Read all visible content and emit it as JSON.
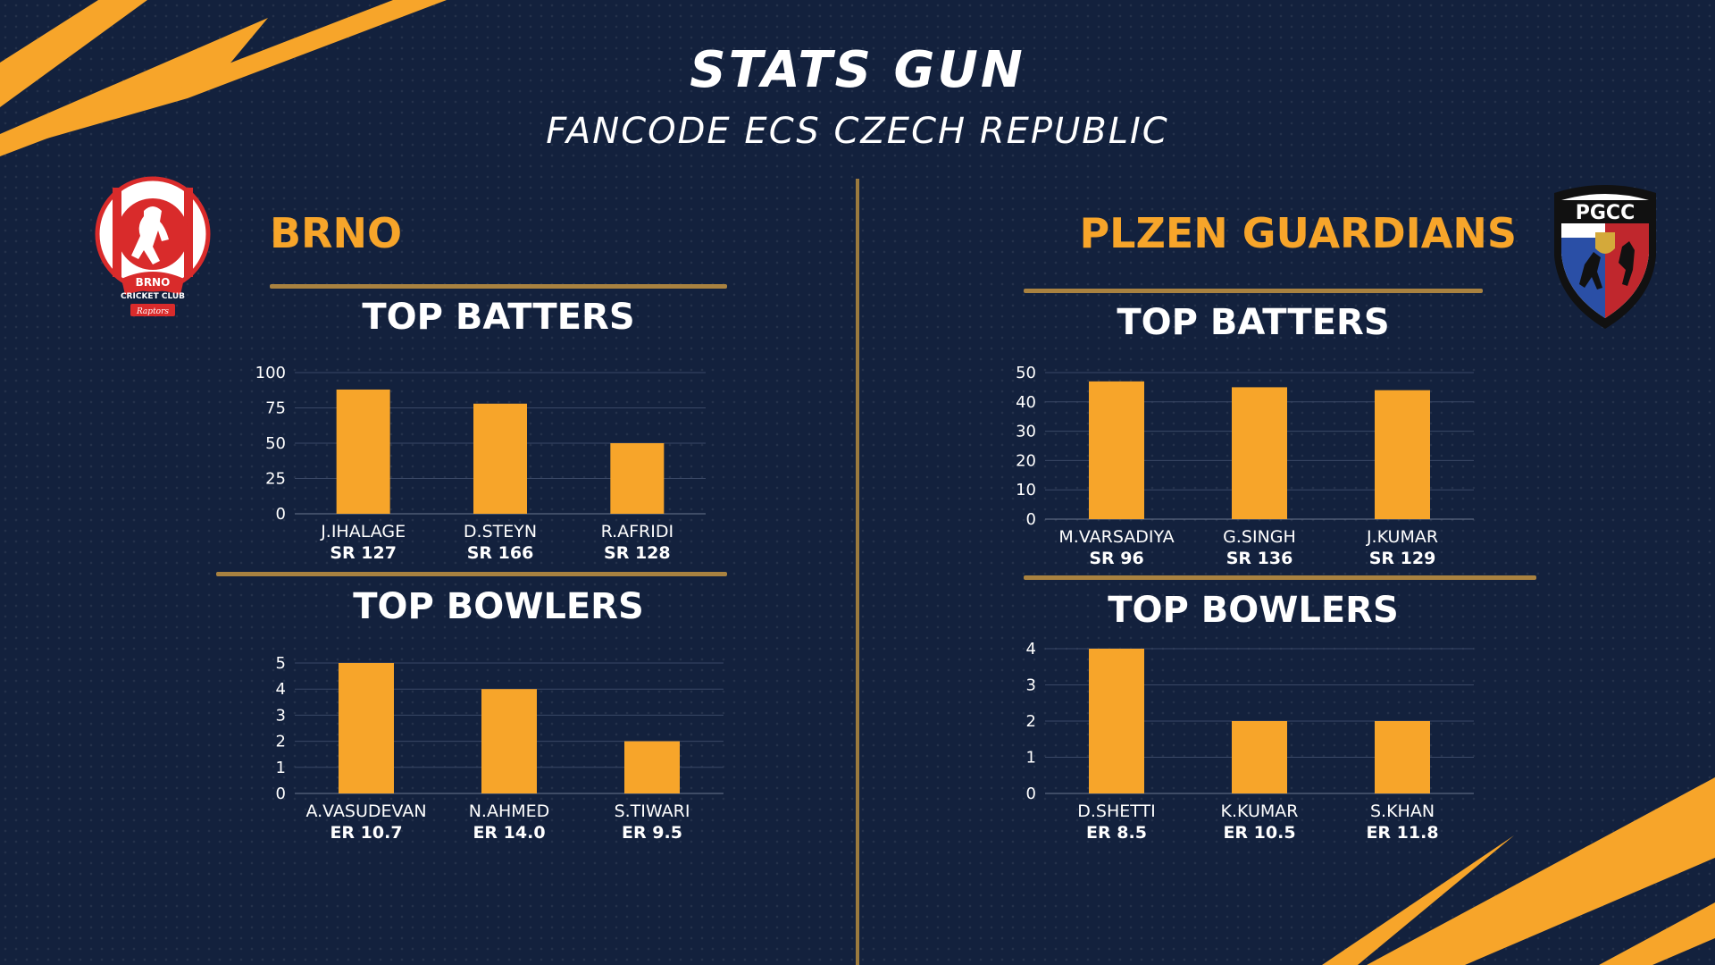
{
  "header": {
    "title": "STATS GUN",
    "subtitle": "FANCODE ECS CZECH REPUBLIC"
  },
  "colors": {
    "background": "#13213d",
    "accent": "#f7a52a",
    "rule": "#a98240",
    "text": "#ffffff"
  },
  "teams": {
    "left": {
      "name": "BRNO",
      "logo": {
        "icon": "brno-cricket-club-logo",
        "line1": "BRNO",
        "line2": "CRICKET CLUB",
        "line3": "Raptors"
      }
    },
    "right": {
      "name": "PLZEN GUARDIANS",
      "logo": {
        "icon": "pgcc-shield-logo",
        "line1": "PGCC"
      }
    }
  },
  "sections": {
    "batters_title": "TOP BATTERS",
    "bowlers_title": "TOP BOWLERS"
  },
  "chart_data": [
    {
      "type": "bar",
      "team": "BRNO",
      "title": "TOP BATTERS",
      "categories": [
        "J.IHALAGE",
        "D.STEYN",
        "R.AFRIDI"
      ],
      "sublabels": [
        "SR 127",
        "SR 166",
        "SR 128"
      ],
      "values": [
        88,
        78,
        50
      ],
      "yticks": [
        0,
        25,
        50,
        75,
        100
      ],
      "ylim": [
        0,
        100
      ],
      "grid": true,
      "color": "#f7a52a"
    },
    {
      "type": "bar",
      "team": "BRNO",
      "title": "TOP BOWLERS",
      "categories": [
        "A.VASUDEVAN",
        "N.AHMED",
        "S.TIWARI"
      ],
      "sublabels": [
        "ER 10.7",
        "ER 14.0",
        "ER 9.5"
      ],
      "values": [
        5,
        4,
        2
      ],
      "yticks": [
        0,
        1,
        2,
        3,
        4,
        5
      ],
      "ylim": [
        0,
        5
      ],
      "grid": true,
      "color": "#f7a52a"
    },
    {
      "type": "bar",
      "team": "PLZEN GUARDIANS",
      "title": "TOP BATTERS",
      "categories": [
        "M.VARSADIYA",
        "G.SINGH",
        "J.KUMAR"
      ],
      "sublabels": [
        "SR 96",
        "SR 136",
        "SR 129"
      ],
      "values": [
        47,
        45,
        44
      ],
      "yticks": [
        0,
        10,
        20,
        30,
        40,
        50
      ],
      "ylim": [
        0,
        50
      ],
      "grid": true,
      "color": "#f7a52a"
    },
    {
      "type": "bar",
      "team": "PLZEN GUARDIANS",
      "title": "TOP BOWLERS",
      "categories": [
        "D.SHETTI",
        "K.KUMAR",
        "S.KHAN"
      ],
      "sublabels": [
        "ER 8.5",
        "ER 10.5",
        "ER 11.8"
      ],
      "values": [
        4,
        2,
        2
      ],
      "yticks": [
        0,
        1,
        2,
        3,
        4
      ],
      "ylim": [
        0,
        4
      ],
      "grid": true,
      "color": "#f7a52a"
    }
  ]
}
